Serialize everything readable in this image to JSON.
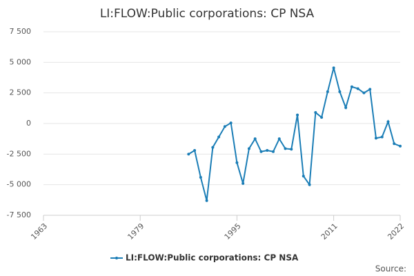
{
  "chart_data": {
    "type": "line",
    "title": "LI:FLOW:Public corporations: CP NSA",
    "x": [
      1987,
      1988,
      1989,
      1990,
      1991,
      1992,
      1993,
      1994,
      1995,
      1996,
      1997,
      1998,
      1999,
      2000,
      2001,
      2002,
      2003,
      2004,
      2005,
      2006,
      2007,
      2008,
      2009,
      2010,
      2011,
      2012,
      2013,
      2014,
      2015,
      2016,
      2017,
      2018,
      2019,
      2020,
      2021,
      2022
    ],
    "series": [
      {
        "name": "LI:FLOW:Public corporations: CP NSA",
        "color": "#1a7db6",
        "values": [
          -2500,
          -2200,
          -4400,
          -6300,
          -1950,
          -1100,
          -250,
          50,
          -3200,
          -4900,
          -2050,
          -1250,
          -2300,
          -2200,
          -2300,
          -1250,
          -2050,
          -2100,
          700,
          -4300,
          -5000,
          900,
          500,
          2600,
          4550,
          2600,
          1300,
          3000,
          2850,
          2500,
          2800,
          -1200,
          -1100,
          150,
          -1650,
          -1850
        ]
      }
    ],
    "xlim": [
      1963,
      2022
    ],
    "xticks": [
      1963,
      1979,
      1995,
      2011,
      2022
    ],
    "ylim": [
      -7500,
      7500
    ],
    "yticks": [
      {
        "value": -7500,
        "label": "-7 500"
      },
      {
        "value": -5000,
        "label": "-5 000"
      },
      {
        "value": -2500,
        "label": "-2 500"
      },
      0,
      {
        "value": 2500,
        "label": "2 500"
      },
      {
        "value": 5000,
        "label": "5 000"
      },
      {
        "value": 7500,
        "label": "7 500"
      }
    ],
    "grid": true,
    "source_label": "Source:"
  }
}
